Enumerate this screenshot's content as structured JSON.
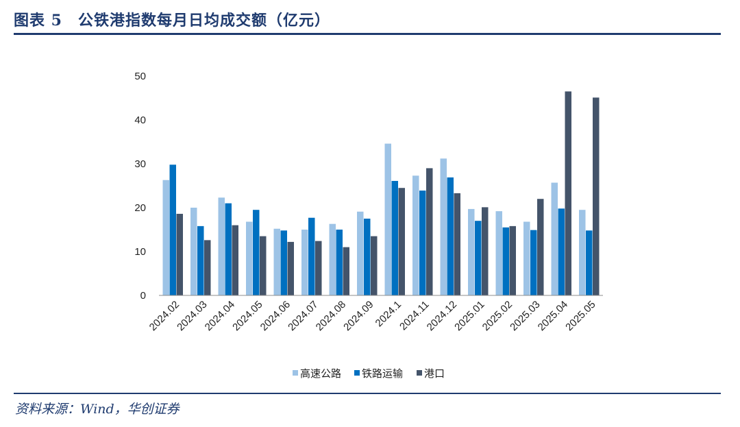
{
  "header": {
    "title": "图表 5　公铁港指数每月日均成交额（亿元）"
  },
  "footer": {
    "source": "资料来源：Wind，华创证券"
  },
  "colors": {
    "highway": "#9dc3e6",
    "railway": "#0070c0",
    "port": "#44546a",
    "brand": "#1f3b6f"
  },
  "chart_data": {
    "type": "bar",
    "title": "",
    "xlabel": "",
    "ylabel": "",
    "ylim": [
      0,
      50
    ],
    "yticks": [
      0,
      10,
      20,
      30,
      40,
      50
    ],
    "grid": false,
    "legend_position": "bottom",
    "categories": [
      "2024.02",
      "2024.03",
      "2024.04",
      "2024.05",
      "2024.06",
      "2024.07",
      "2024.08",
      "2024.09",
      "2024.1",
      "2024.11",
      "2024.12",
      "2025.01",
      "2025.02",
      "2025.03",
      "2025.04",
      "2025.05"
    ],
    "series": [
      {
        "name": "高速公路",
        "color": "#9dc3e6",
        "values": [
          26.3,
          20.0,
          22.3,
          16.8,
          15.2,
          15.0,
          16.3,
          19.1,
          34.6,
          27.3,
          31.2,
          19.7,
          19.2,
          16.8,
          25.7,
          19.5
        ]
      },
      {
        "name": "铁路运输",
        "color": "#0070c0",
        "values": [
          29.8,
          15.8,
          21.0,
          19.5,
          14.8,
          17.7,
          15.0,
          17.5,
          26.1,
          23.9,
          26.9,
          17.0,
          15.5,
          14.9,
          19.8,
          14.8
        ]
      },
      {
        "name": "港口",
        "color": "#44546a",
        "values": [
          18.6,
          12.6,
          16.0,
          13.5,
          12.2,
          12.4,
          11.0,
          13.5,
          24.5,
          29.0,
          23.3,
          20.1,
          15.8,
          22.0,
          46.5,
          45.1
        ]
      }
    ]
  }
}
